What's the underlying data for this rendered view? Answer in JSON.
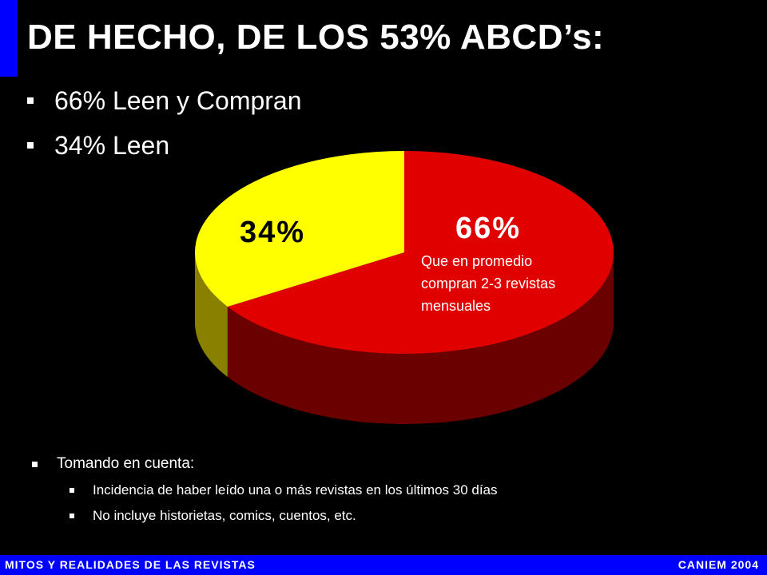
{
  "title": "DE HECHO, DE LOS 53% ABCD’s:",
  "bullets": [
    "66% Leen y Compran",
    "34% Leen"
  ],
  "chart_data": {
    "type": "pie",
    "slices": [
      {
        "label": "66%",
        "value": 66,
        "color": "#e00000",
        "side_color": "#6a0000",
        "annotation": "Que en promedio compran 2-3 revistas mensuales"
      },
      {
        "label": "34%",
        "value": 34,
        "color": "#ffff00",
        "side_color": "#8a8000"
      }
    ],
    "annotation_lines": [
      "Que en promedio",
      "compran 2-3 revistas",
      "mensuales"
    ],
    "style": "3d"
  },
  "notes": {
    "heading": "Tomando en cuenta:",
    "items": [
      "Incidencia de haber leído una o más revistas en los últimos 30 días",
      "No incluye historietas, comics, cuentos, etc."
    ]
  },
  "footer": {
    "left": "MITOS Y REALIDADES DE LAS REVISTAS",
    "right": "CANIEM 2004"
  },
  "colors": {
    "accent": "#0000ff",
    "background": "#000000",
    "text": "#ffffff"
  }
}
